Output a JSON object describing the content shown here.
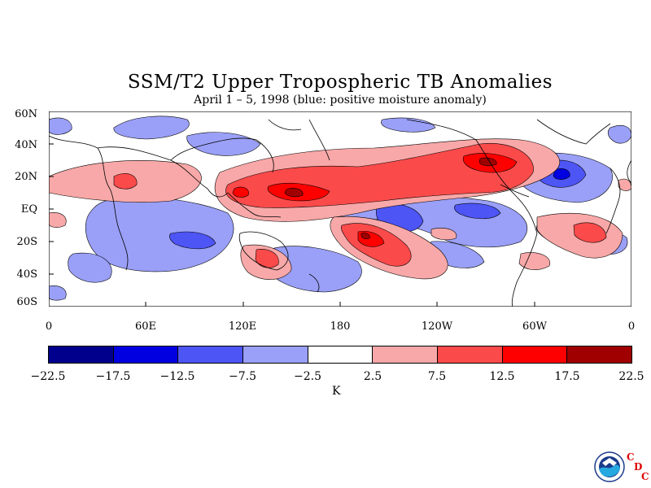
{
  "title": "SSM/T2 Upper Tropospheric TB Anomalies",
  "subtitle": "April 1 – 5, 1998 (blue: positive moisture anomaly)",
  "lat_labels": [
    "60N",
    "40N",
    "20N",
    "EQ",
    "20S",
    "40S",
    "60S"
  ],
  "lon_labels": [
    "0",
    "60E",
    "120E",
    "180",
    "120W",
    "60W",
    "0"
  ],
  "colorbar": {
    "colors": [
      "#00008c",
      "#0000e0",
      "#4d55f5",
      "#9aa0f7",
      "#ffffff",
      "#f8a8a8",
      "#fb4a4a",
      "#ff0000",
      "#a00000"
    ],
    "labels": [
      "−22.5",
      "−17.5",
      "−12.5",
      "−7.5",
      "−2.5",
      "2.5",
      "7.5",
      "12.5",
      "17.5",
      "22.5"
    ],
    "unit": "K"
  },
  "logo": {
    "name": "NOAA",
    "org_letters": [
      "C",
      "D",
      "C"
    ]
  }
}
